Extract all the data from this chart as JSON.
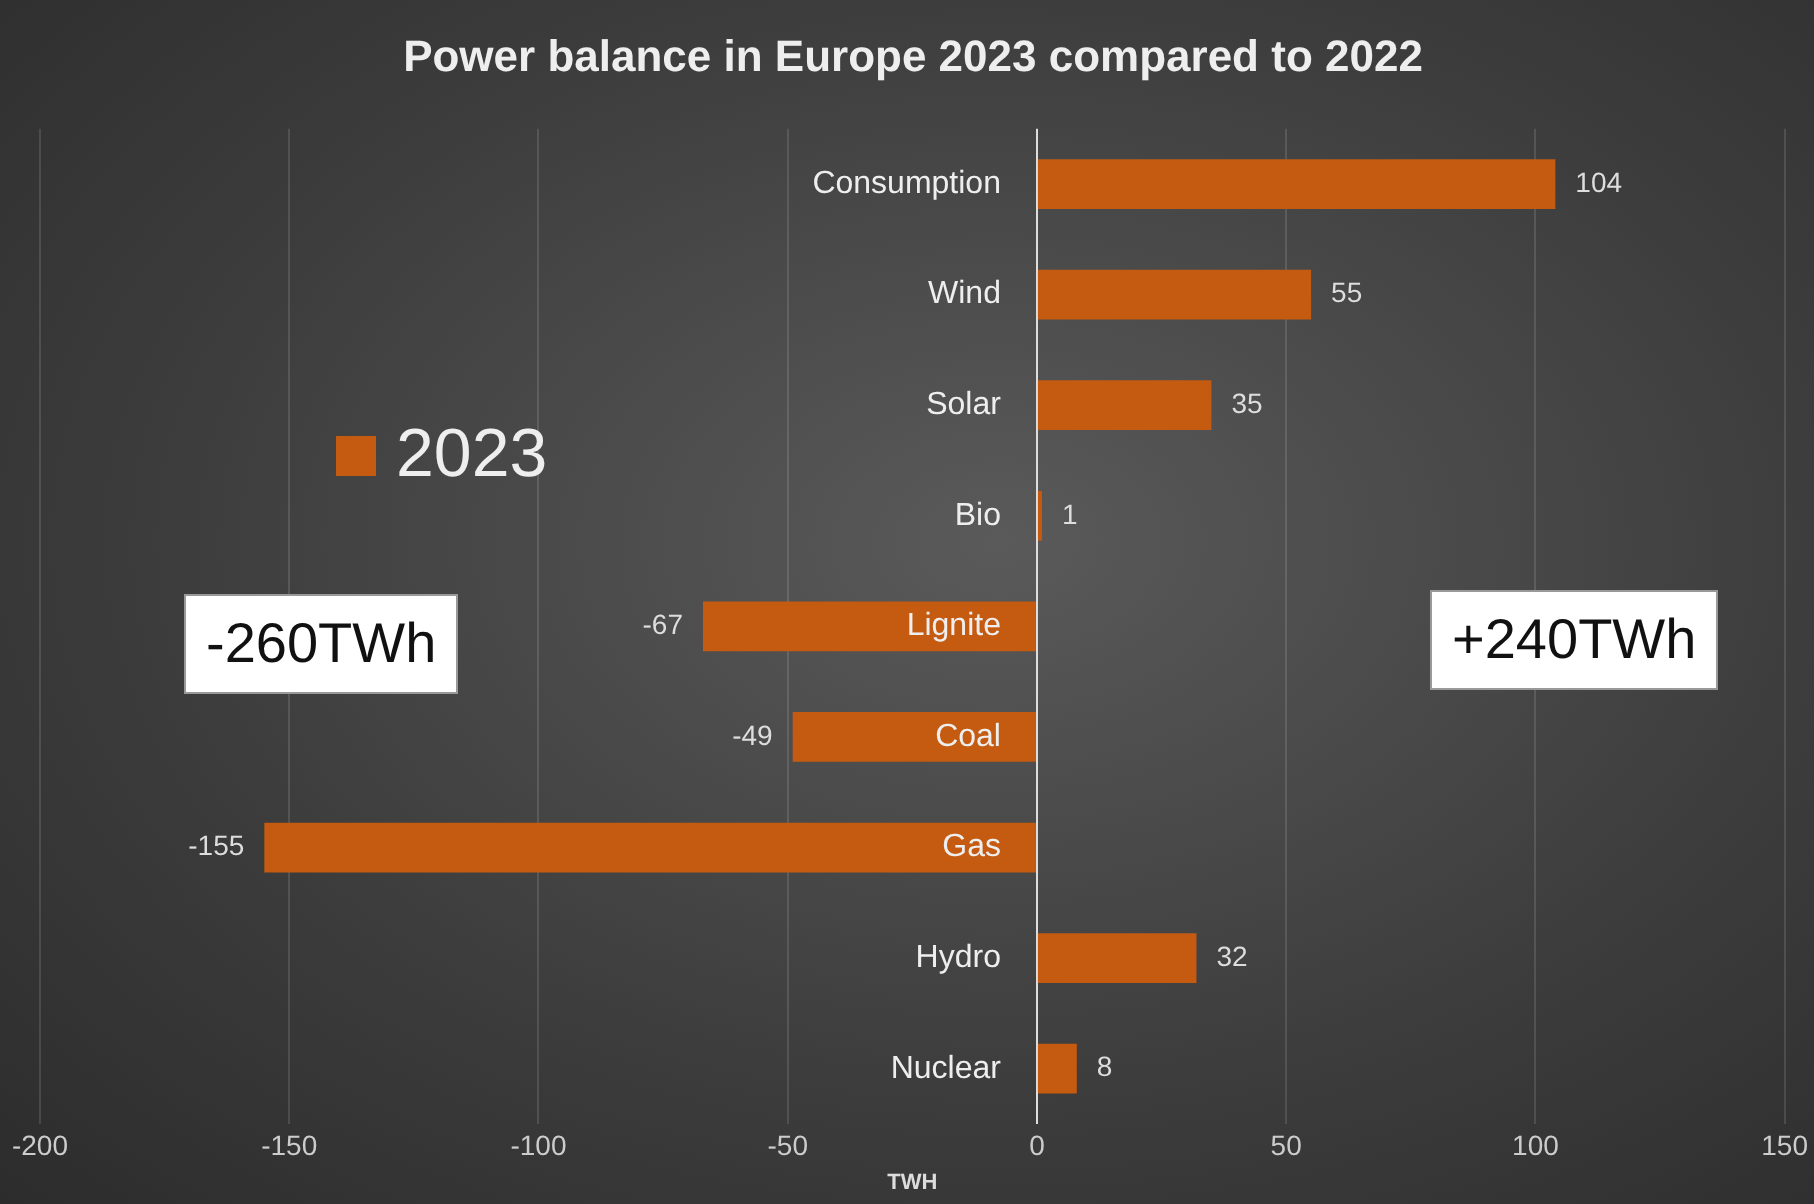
{
  "chart_data": {
    "type": "bar",
    "orientation": "horizontal",
    "title": "Power balance in Europe 2023 compared to 2022",
    "xlabel": "TWH",
    "categories": [
      "Consumption",
      "Wind",
      "Solar",
      "Bio",
      "Lignite",
      "Coal",
      "Gas",
      "Hydro",
      "Nuclear"
    ],
    "series": [
      {
        "name": "2023",
        "color": "#c55a11",
        "values": [
          104,
          55,
          35,
          1,
          -67,
          -49,
          -155,
          32,
          8
        ]
      }
    ],
    "xlim": [
      -200,
      150
    ],
    "xticks": [
      -200,
      -150,
      -100,
      -50,
      0,
      50,
      100,
      150
    ],
    "grid": "x",
    "legend": "top left",
    "data_labels": true,
    "annotations": [
      "-260TWh",
      "+240TWh"
    ]
  }
}
